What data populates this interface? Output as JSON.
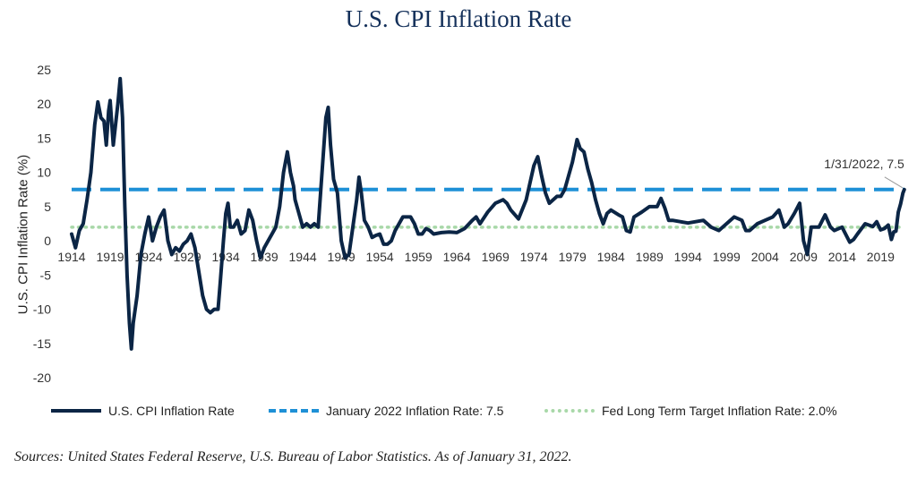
{
  "chart_data": {
    "type": "line",
    "title": "U.S. CPI Inflation Rate",
    "xlabel": "",
    "ylabel": "U.S. CPI Inflation Rate (%)",
    "xlim": [
      1914,
      2022.1
    ],
    "ylim": [
      -20,
      25
    ],
    "yticks": [
      25,
      20,
      15,
      10,
      5,
      0,
      -5,
      -10,
      -15,
      -20
    ],
    "xticks": [
      1914,
      1919,
      1924,
      1929,
      1934,
      1939,
      1944,
      1949,
      1954,
      1959,
      1964,
      1969,
      1974,
      1979,
      1984,
      1989,
      1994,
      1999,
      2004,
      2009,
      2014,
      2019
    ],
    "legend_position": "bottom",
    "grid": false,
    "series": [
      {
        "name": "U.S. CPI Inflation Rate",
        "color": "#0b2545",
        "style": "solid",
        "points": [
          [
            1914.0,
            1.0
          ],
          [
            1914.5,
            -1.0
          ],
          [
            1915.0,
            1.5
          ],
          [
            1915.5,
            2.5
          ],
          [
            1916.0,
            6.0
          ],
          [
            1916.5,
            10.0
          ],
          [
            1917.0,
            17.0
          ],
          [
            1917.4,
            20.3
          ],
          [
            1917.8,
            18.0
          ],
          [
            1918.2,
            17.5
          ],
          [
            1918.5,
            14.0
          ],
          [
            1918.8,
            19.0
          ],
          [
            1919.0,
            20.5
          ],
          [
            1919.4,
            14.0
          ],
          [
            1919.8,
            18.0
          ],
          [
            1920.0,
            20.0
          ],
          [
            1920.3,
            23.7
          ],
          [
            1920.6,
            18.0
          ],
          [
            1920.9,
            5.0
          ],
          [
            1921.2,
            -5.0
          ],
          [
            1921.5,
            -12.0
          ],
          [
            1921.75,
            -15.8
          ],
          [
            1922.0,
            -12.0
          ],
          [
            1922.5,
            -8.0
          ],
          [
            1923.0,
            -2.0
          ],
          [
            1923.5,
            1.0
          ],
          [
            1924.0,
            3.5
          ],
          [
            1924.5,
            0.0
          ],
          [
            1925.0,
            2.0
          ],
          [
            1925.5,
            3.5
          ],
          [
            1926.0,
            4.5
          ],
          [
            1926.5,
            0.0
          ],
          [
            1927.0,
            -2.0
          ],
          [
            1927.5,
            -1.0
          ],
          [
            1928.0,
            -1.5
          ],
          [
            1928.5,
            -0.5
          ],
          [
            1929.0,
            0.0
          ],
          [
            1929.5,
            1.0
          ],
          [
            1930.0,
            -1.0
          ],
          [
            1930.5,
            -4.5
          ],
          [
            1931.0,
            -8.0
          ],
          [
            1931.5,
            -10.0
          ],
          [
            1932.0,
            -10.5
          ],
          [
            1932.5,
            -10.0
          ],
          [
            1933.0,
            -10.0
          ],
          [
            1933.3,
            -6.0
          ],
          [
            1933.7,
            0.0
          ],
          [
            1934.0,
            4.0
          ],
          [
            1934.3,
            5.5
          ],
          [
            1934.6,
            2.0
          ],
          [
            1935.0,
            2.0
          ],
          [
            1935.5,
            3.0
          ],
          [
            1936.0,
            1.0
          ],
          [
            1936.5,
            1.5
          ],
          [
            1937.0,
            4.5
          ],
          [
            1937.5,
            3.0
          ],
          [
            1938.0,
            0.0
          ],
          [
            1938.5,
            -2.5
          ],
          [
            1939.0,
            -1.0
          ],
          [
            1939.5,
            0.0
          ],
          [
            1940.0,
            1.0
          ],
          [
            1940.5,
            2.0
          ],
          [
            1941.0,
            5.0
          ],
          [
            1941.5,
            10.0
          ],
          [
            1942.0,
            13.0
          ],
          [
            1942.4,
            10.0
          ],
          [
            1942.8,
            8.0
          ],
          [
            1943.0,
            6.0
          ],
          [
            1943.5,
            4.0
          ],
          [
            1944.0,
            2.0
          ],
          [
            1944.5,
            2.5
          ],
          [
            1945.0,
            2.0
          ],
          [
            1945.5,
            2.5
          ],
          [
            1946.0,
            2.0
          ],
          [
            1946.5,
            10.0
          ],
          [
            1947.0,
            18.0
          ],
          [
            1947.3,
            19.5
          ],
          [
            1947.6,
            14.0
          ],
          [
            1948.0,
            9.0
          ],
          [
            1948.5,
            7.0
          ],
          [
            1949.0,
            0.0
          ],
          [
            1949.5,
            -2.5
          ],
          [
            1950.0,
            -2.0
          ],
          [
            1950.5,
            2.0
          ],
          [
            1951.0,
            6.0
          ],
          [
            1951.3,
            9.3
          ],
          [
            1951.6,
            7.0
          ],
          [
            1952.0,
            3.0
          ],
          [
            1952.5,
            2.0
          ],
          [
            1953.0,
            0.5
          ],
          [
            1953.5,
            0.8
          ],
          [
            1954.0,
            1.0
          ],
          [
            1954.5,
            -0.5
          ],
          [
            1955.0,
            -0.5
          ],
          [
            1955.5,
            0.0
          ],
          [
            1956.0,
            1.5
          ],
          [
            1956.5,
            2.5
          ],
          [
            1957.0,
            3.5
          ],
          [
            1957.5,
            3.5
          ],
          [
            1958.0,
            3.5
          ],
          [
            1958.5,
            2.5
          ],
          [
            1959.0,
            1.0
          ],
          [
            1959.5,
            1.0
          ],
          [
            1960.0,
            1.8
          ],
          [
            1960.5,
            1.5
          ],
          [
            1961.0,
            1.0
          ],
          [
            1962.0,
            1.2
          ],
          [
            1963.0,
            1.3
          ],
          [
            1964.0,
            1.2
          ],
          [
            1965.0,
            1.8
          ],
          [
            1966.0,
            3.0
          ],
          [
            1966.5,
            3.5
          ],
          [
            1967.0,
            2.5
          ],
          [
            1968.0,
            4.2
          ],
          [
            1969.0,
            5.5
          ],
          [
            1970.0,
            6.0
          ],
          [
            1970.5,
            5.5
          ],
          [
            1971.0,
            4.5
          ],
          [
            1972.0,
            3.2
          ],
          [
            1973.0,
            6.0
          ],
          [
            1973.5,
            8.5
          ],
          [
            1974.0,
            11.0
          ],
          [
            1974.5,
            12.3
          ],
          [
            1975.0,
            9.5
          ],
          [
            1975.5,
            7.0
          ],
          [
            1976.0,
            5.5
          ],
          [
            1977.0,
            6.5
          ],
          [
            1977.5,
            6.5
          ],
          [
            1978.0,
            7.5
          ],
          [
            1978.5,
            9.5
          ],
          [
            1979.0,
            11.5
          ],
          [
            1979.6,
            14.8
          ],
          [
            1980.0,
            13.5
          ],
          [
            1980.5,
            13.0
          ],
          [
            1981.0,
            10.5
          ],
          [
            1981.5,
            8.5
          ],
          [
            1982.0,
            6.0
          ],
          [
            1982.5,
            4.0
          ],
          [
            1983.0,
            2.5
          ],
          [
            1983.5,
            4.0
          ],
          [
            1984.0,
            4.5
          ],
          [
            1985.0,
            3.8
          ],
          [
            1985.5,
            3.5
          ],
          [
            1986.0,
            1.5
          ],
          [
            1986.5,
            1.3
          ],
          [
            1987.0,
            3.5
          ],
          [
            1988.0,
            4.2
          ],
          [
            1989.0,
            5.0
          ],
          [
            1990.0,
            5.0
          ],
          [
            1990.5,
            6.2
          ],
          [
            1991.0,
            4.8
          ],
          [
            1991.5,
            3.0
          ],
          [
            1992.0,
            3.0
          ],
          [
            1993.0,
            2.8
          ],
          [
            1994.0,
            2.6
          ],
          [
            1995.0,
            2.8
          ],
          [
            1996.0,
            3.0
          ],
          [
            1997.0,
            2.0
          ],
          [
            1998.0,
            1.5
          ],
          [
            1999.0,
            2.5
          ],
          [
            2000.0,
            3.5
          ],
          [
            2001.0,
            3.0
          ],
          [
            2001.5,
            1.5
          ],
          [
            2002.0,
            1.5
          ],
          [
            2003.0,
            2.5
          ],
          [
            2004.0,
            3.0
          ],
          [
            2005.0,
            3.5
          ],
          [
            2005.8,
            4.5
          ],
          [
            2006.5,
            2.0
          ],
          [
            2007.0,
            2.5
          ],
          [
            2007.8,
            4.0
          ],
          [
            2008.5,
            5.5
          ],
          [
            2009.0,
            0.0
          ],
          [
            2009.5,
            -2.0
          ],
          [
            2010.0,
            2.0
          ],
          [
            2011.0,
            2.0
          ],
          [
            2011.8,
            3.8
          ],
          [
            2012.5,
            2.0
          ],
          [
            2013.0,
            1.5
          ],
          [
            2014.0,
            2.0
          ],
          [
            2015.0,
            -0.2
          ],
          [
            2015.5,
            0.2
          ],
          [
            2016.0,
            1.0
          ],
          [
            2017.0,
            2.5
          ],
          [
            2018.0,
            2.1
          ],
          [
            2018.5,
            2.8
          ],
          [
            2019.0,
            1.6
          ],
          [
            2019.5,
            1.8
          ],
          [
            2020.0,
            2.3
          ],
          [
            2020.4,
            0.2
          ],
          [
            2020.7,
            1.3
          ],
          [
            2021.0,
            1.4
          ],
          [
            2021.3,
            4.2
          ],
          [
            2021.6,
            5.4
          ],
          [
            2021.9,
            7.0
          ],
          [
            2022.08,
            7.5
          ]
        ]
      },
      {
        "name": "January 2022 Inflation Rate: 7.5",
        "color": "#1e90d6",
        "style": "dashed",
        "value": 7.5
      },
      {
        "name": "Fed Long Term Target Inflation Rate: 2.0%",
        "color": "#a8d8a8",
        "style": "dotted",
        "value": 2.0
      }
    ],
    "annotation": {
      "text": "1/31/2022, 7.5",
      "x": 2022.08,
      "y": 7.5
    }
  },
  "sources": "Sources: United States Federal Reserve, U.S. Bureau of Labor Statistics. As of January 31, 2022."
}
